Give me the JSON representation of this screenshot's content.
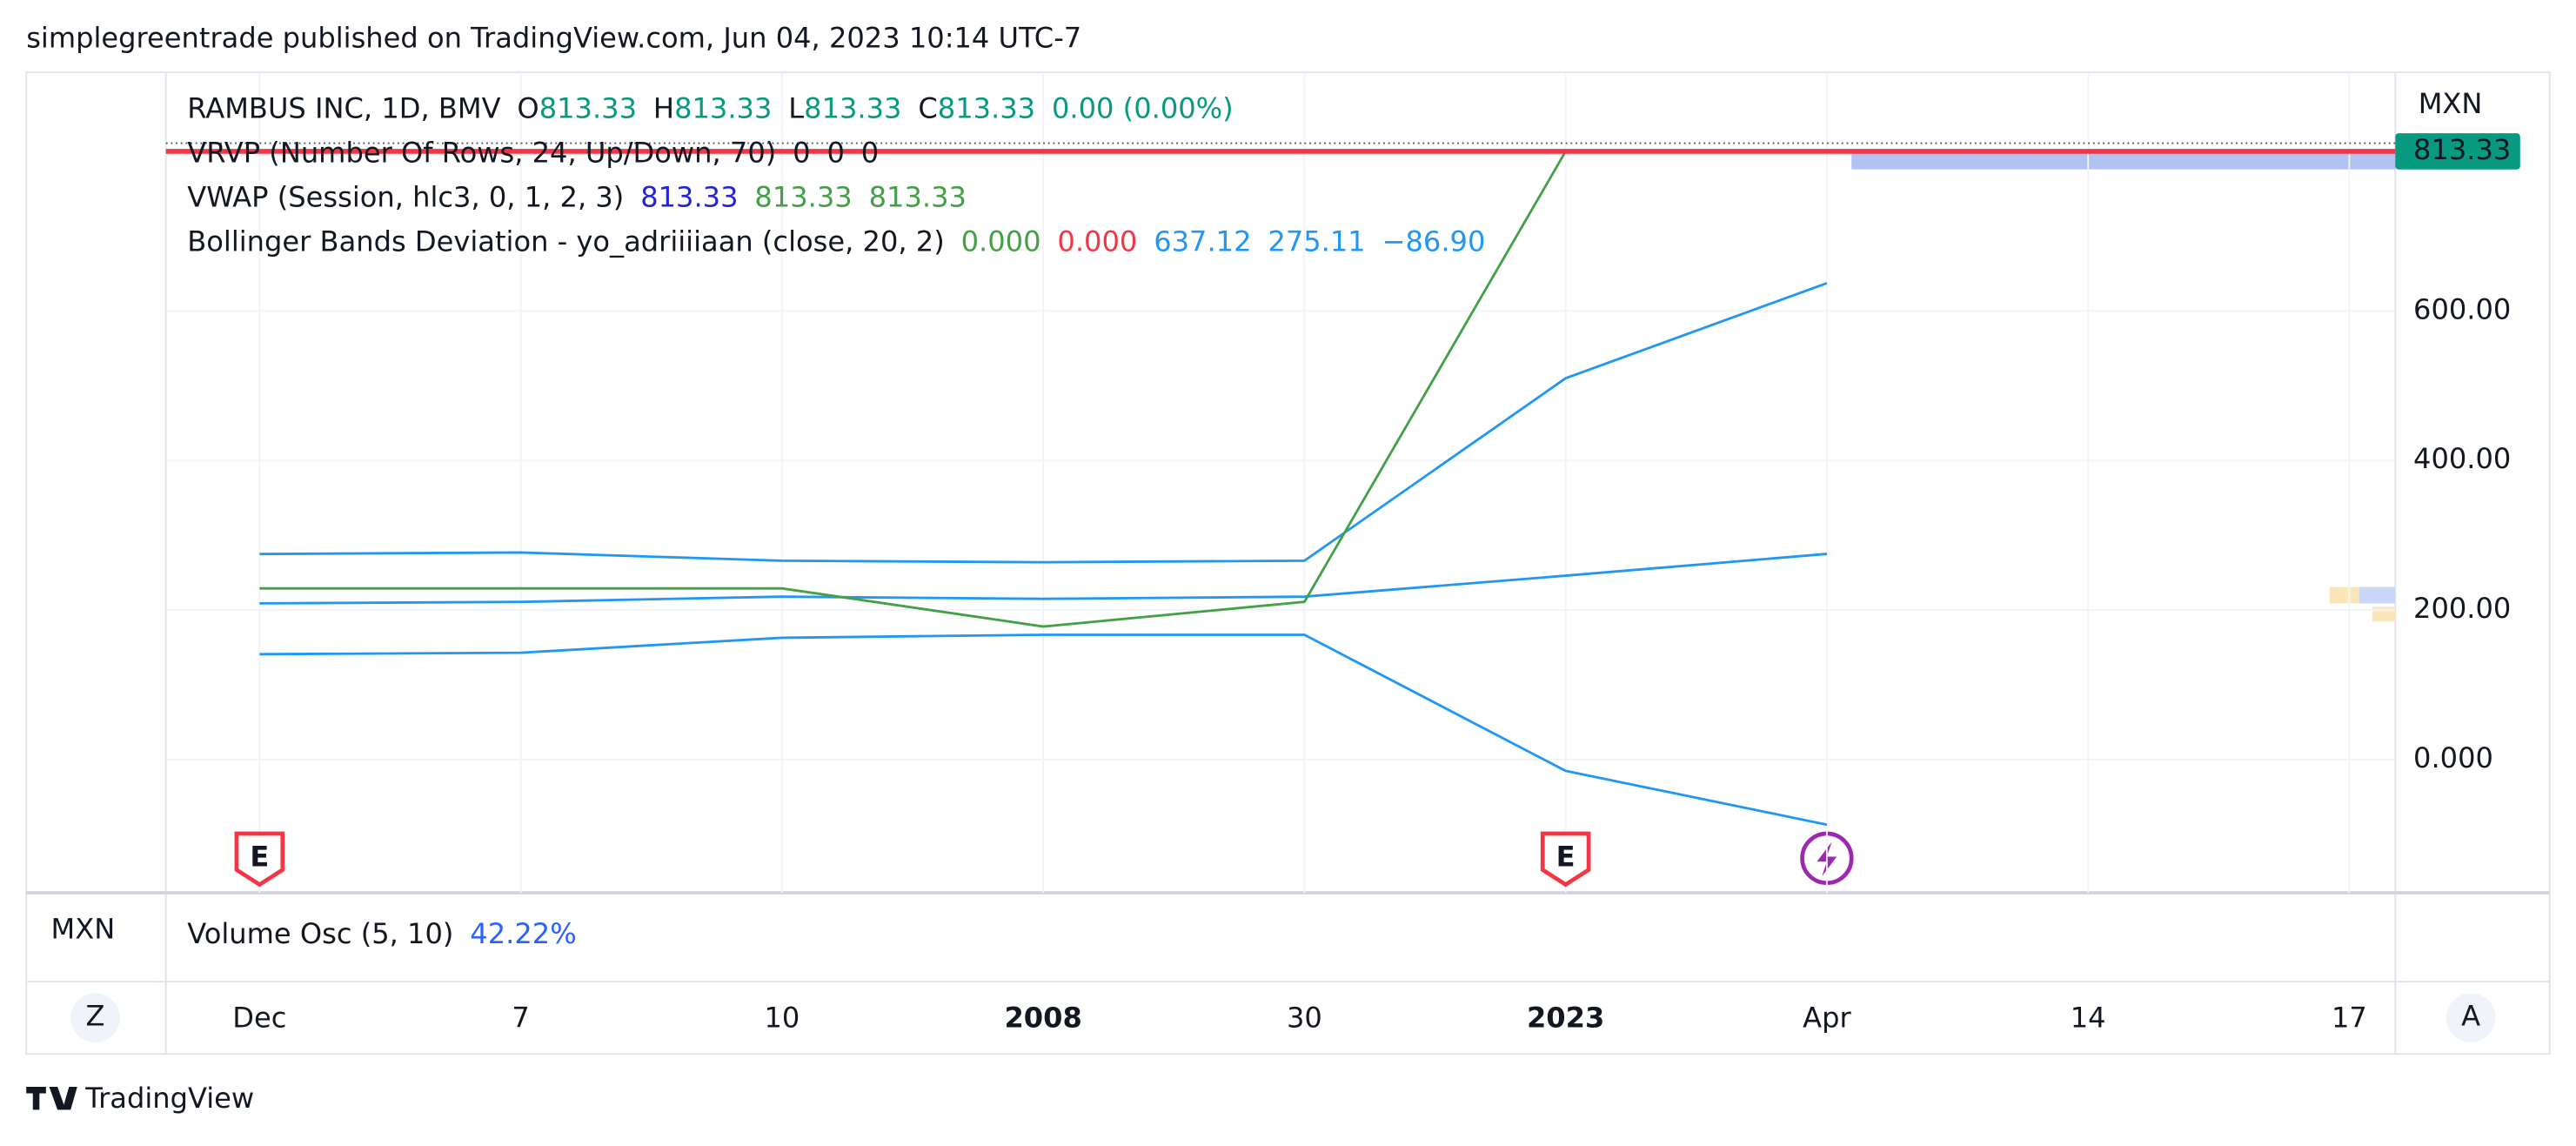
{
  "header": {
    "title": "simplegreentrade published on TradingView.com, Jun 04, 2023 10:14 UTC-7"
  },
  "legend": [
    {
      "name": "RAMBUS INC, 1D, BMV",
      "values": [
        {
          "prefix": "O",
          "text": "813.33",
          "color": "#089981"
        },
        {
          "prefix": "H",
          "text": "813.33",
          "color": "#089981"
        },
        {
          "prefix": "L",
          "text": "813.33",
          "color": "#089981"
        },
        {
          "prefix": "C",
          "text": "813.33",
          "color": "#089981"
        },
        {
          "text": "0.00 (0.00%)",
          "color": "#089981"
        }
      ]
    },
    {
      "name": "VRVP (Number Of Rows, 24, Up/Down, 70)",
      "values": [
        {
          "text": "0",
          "color": "#131722"
        },
        {
          "text": "0",
          "color": "#131722"
        },
        {
          "text": "0",
          "color": "#131722"
        }
      ]
    },
    {
      "name": "VWAP (Session, hlc3, 0, 1, 2, 3)",
      "values": [
        {
          "text": "813.33",
          "color": "#2424d6"
        },
        {
          "text": "813.33",
          "color": "#43a047"
        },
        {
          "text": "813.33",
          "color": "#43a047"
        }
      ]
    },
    {
      "name": "Bollinger Bands Deviation - yo_adriiiiaan (close, 20, 2)",
      "values": [
        {
          "text": "0.000",
          "color": "#43a047"
        },
        {
          "text": "0.000",
          "color": "#f23645"
        },
        {
          "text": "637.12",
          "color": "#2196f3"
        },
        {
          "text": "275.11",
          "color": "#2196f3"
        },
        {
          "text": "−86.90",
          "color": "#2196f3"
        }
      ]
    }
  ],
  "chart": {
    "currency": "MXN",
    "ylim": [
      -178,
      919
    ],
    "yticks": [
      {
        "value": 0,
        "label": "0.000"
      },
      {
        "value": 200,
        "label": "200.00"
      },
      {
        "value": 400,
        "label": "400.00"
      },
      {
        "value": 600,
        "label": "600.00"
      }
    ],
    "last_price": {
      "value": 813.33,
      "label": "813.33"
    },
    "categories": [
      "Dec",
      "7",
      "10",
      "2008",
      "30",
      "2023",
      "Apr",
      "14",
      "17"
    ],
    "bold_categories": [
      3,
      5
    ],
    "series": [
      {
        "color": "#2196f3",
        "values": [
          275,
          277,
          266,
          264,
          266,
          510,
          637.12,
          null,
          null
        ]
      },
      {
        "color": "#2196f3",
        "values": [
          209,
          211,
          218,
          215,
          218,
          246,
          275.11,
          null,
          null
        ]
      },
      {
        "color": "#2196f3",
        "values": [
          141,
          143,
          163,
          167,
          167,
          -15,
          -86.9,
          null,
          null
        ]
      },
      {
        "color": "#43a047",
        "values": [
          229,
          229,
          229,
          178,
          211,
          813.33,
          null,
          null,
          null
        ]
      }
    ],
    "events": [
      {
        "label": "E",
        "category": 0
      },
      {
        "label": "E",
        "category": 5
      }
    ]
  },
  "volume_pane": {
    "currency": "MXN",
    "label": "Volume Osc (5, 10)",
    "value": "42.22%"
  },
  "buttons": {
    "left": "Z",
    "right": "A"
  },
  "footer": {
    "brand": "TradingView"
  }
}
